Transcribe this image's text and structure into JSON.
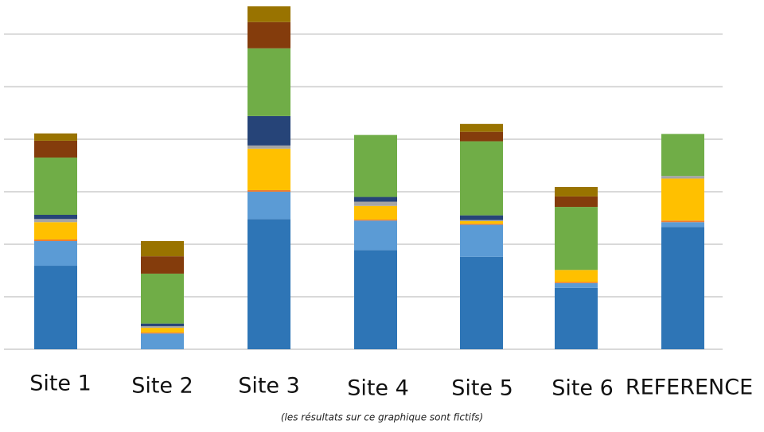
{
  "chart_data": {
    "type": "stacked_bar",
    "categories": [
      "Site 1",
      "Site 2",
      "Site 3",
      "Site 4",
      "Site 5",
      "Site 6",
      "REFERENCE"
    ],
    "series": [
      {
        "color": "#2e75b6",
        "values": [
          1.59,
          0,
          2.48,
          1.89,
          1.76,
          1.17,
          2.33
        ]
      },
      {
        "color": "#5b9bd5",
        "values": [
          0.47,
          0.3,
          0.52,
          0.56,
          0.61,
          0.09,
          0.09
        ]
      },
      {
        "color": "#ed7d31",
        "values": [
          0.03,
          0.02,
          0.03,
          0.02,
          0.02,
          0.02,
          0.03
        ]
      },
      {
        "color": "#ffc000",
        "values": [
          0.33,
          0.09,
          0.79,
          0.26,
          0.05,
          0.23,
          0.8
        ]
      },
      {
        "color": "#a5a5a5",
        "values": [
          0.06,
          0.03,
          0.06,
          0.08,
          0.02,
          0,
          0.05
        ]
      },
      {
        "color": "#264478",
        "values": [
          0.08,
          0.05,
          0.56,
          0.09,
          0.09,
          0,
          0
        ]
      },
      {
        "color": "#70ad47",
        "values": [
          1.09,
          0.95,
          1.29,
          1.18,
          1.41,
          1.2,
          0.8
        ]
      },
      {
        "color": "#843c0c",
        "values": [
          0.32,
          0.33,
          0.5,
          0,
          0.18,
          0.2,
          0
        ]
      },
      {
        "color": "#997300",
        "values": [
          0.14,
          0.29,
          0.3,
          0,
          0.15,
          0.18,
          0
        ]
      }
    ],
    "ylim": [
      0,
      6.65
    ],
    "yticks": [
      0,
      1,
      2,
      3,
      4,
      5,
      6
    ],
    "grid": true,
    "tick_labels": false,
    "note": "(les résultats sur ce graphique sont fictifs)"
  }
}
